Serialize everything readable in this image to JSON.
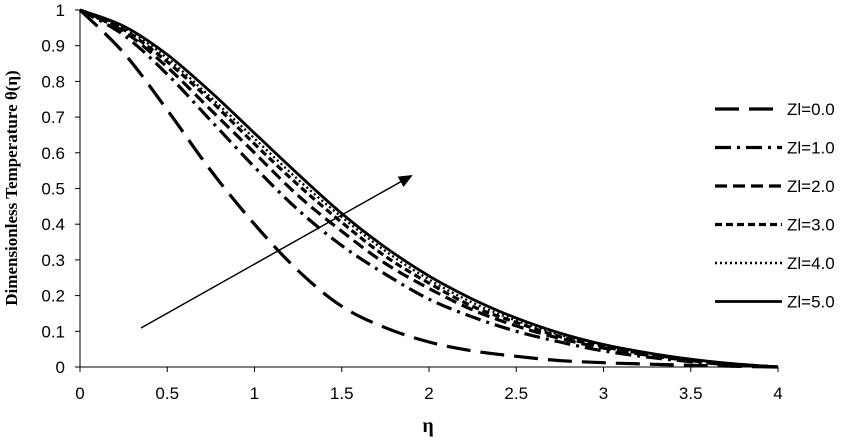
{
  "chart_data": {
    "type": "line",
    "xlabel": "η",
    "ylabel": "Dimensionless Temperature θ(η)",
    "xlim": [
      0,
      4
    ],
    "ylim": [
      0,
      1
    ],
    "xticks": [
      "0",
      "0.5",
      "1",
      "1.5",
      "2",
      "2.5",
      "3",
      "3.5",
      "4"
    ],
    "yticks": [
      "0",
      "0.1",
      "0.2",
      "0.3",
      "0.4",
      "0.5",
      "0.6",
      "0.7",
      "0.8",
      "0.9",
      "1"
    ],
    "grid": false,
    "legend_position": "right",
    "annotation": "arrow indicating increasing Zl",
    "x": [
      0,
      0.25,
      0.5,
      0.75,
      1.0,
      1.25,
      1.5,
      1.75,
      2.0,
      2.25,
      2.5,
      2.75,
      3.0,
      3.25,
      3.5,
      3.75,
      4.0
    ],
    "series": [
      {
        "name": "Zl=0.0",
        "style": "long-dash",
        "values": [
          1.0,
          0.88,
          0.72,
          0.55,
          0.4,
          0.27,
          0.17,
          0.11,
          0.07,
          0.045,
          0.03,
          0.018,
          0.012,
          0.008,
          0.005,
          0.002,
          0.0
        ]
      },
      {
        "name": "Zl=1.0",
        "style": "dash-dot",
        "values": [
          1.0,
          0.93,
          0.82,
          0.69,
          0.56,
          0.44,
          0.34,
          0.26,
          0.19,
          0.14,
          0.1,
          0.07,
          0.045,
          0.028,
          0.015,
          0.006,
          0.0
        ]
      },
      {
        "name": "Zl=2.0",
        "style": "dash",
        "values": [
          1.0,
          0.94,
          0.84,
          0.72,
          0.6,
          0.48,
          0.38,
          0.29,
          0.22,
          0.16,
          0.115,
          0.08,
          0.053,
          0.033,
          0.018,
          0.007,
          0.0
        ]
      },
      {
        "name": "Zl=3.0",
        "style": "short-dash",
        "values": [
          1.0,
          0.945,
          0.855,
          0.745,
          0.625,
          0.51,
          0.405,
          0.31,
          0.235,
          0.17,
          0.125,
          0.085,
          0.057,
          0.036,
          0.02,
          0.008,
          0.0
        ]
      },
      {
        "name": "Zl=4.0",
        "style": "dot",
        "values": [
          1.0,
          0.95,
          0.865,
          0.755,
          0.64,
          0.525,
          0.42,
          0.325,
          0.245,
          0.18,
          0.13,
          0.09,
          0.06,
          0.038,
          0.021,
          0.008,
          0.0
        ]
      },
      {
        "name": "Zl=5.0",
        "style": "solid",
        "values": [
          1.0,
          0.955,
          0.875,
          0.77,
          0.655,
          0.54,
          0.43,
          0.335,
          0.255,
          0.19,
          0.137,
          0.095,
          0.063,
          0.04,
          0.022,
          0.009,
          0.0
        ]
      }
    ]
  }
}
